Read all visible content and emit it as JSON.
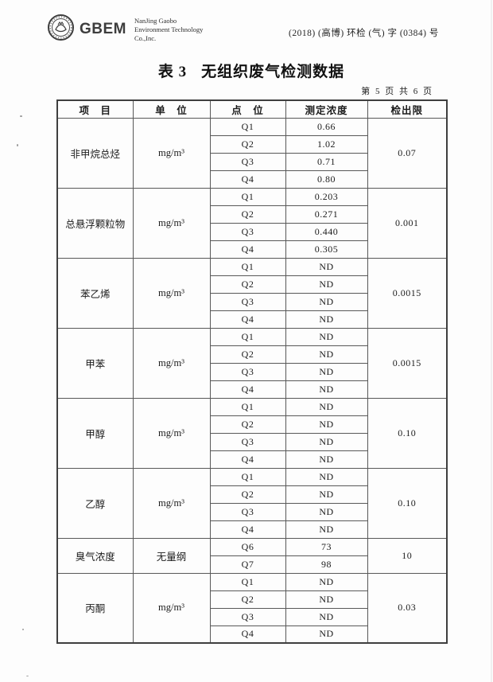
{
  "colors": {
    "paper": "#fdfdfd",
    "ink": "#1f1f1f",
    "border": "#585858",
    "logo_gray": "#3d3d3d"
  },
  "header": {
    "logo_icon": "gbem-seal-icon",
    "logo_text": "GBEM",
    "company_lines": [
      "NanJing Gaobo",
      "Environment Technology",
      "Co.,Inc."
    ],
    "doc_number": "(2018) (高博) 环检 (气) 字 (0384) 号"
  },
  "title": {
    "prefix": "表 3",
    "text": "无组织废气检测数据"
  },
  "page_info": "第 5 页 共 6 页",
  "table": {
    "columns": [
      "项　目",
      "单　位",
      "点　位",
      "测定浓度",
      "检出限"
    ],
    "groups": [
      {
        "item": "非甲烷总烃",
        "unit": "mg/m³",
        "points": [
          {
            "point": "Q1",
            "value": "0.66"
          },
          {
            "point": "Q2",
            "value": "1.02"
          },
          {
            "point": "Q3",
            "value": "0.71"
          },
          {
            "point": "Q4",
            "value": "0.80"
          }
        ],
        "detection_limit": "0.07"
      },
      {
        "item": "总悬浮颗粒物",
        "unit": "mg/m³",
        "points": [
          {
            "point": "Q1",
            "value": "0.203"
          },
          {
            "point": "Q2",
            "value": "0.271"
          },
          {
            "point": "Q3",
            "value": "0.440"
          },
          {
            "point": "Q4",
            "value": "0.305"
          }
        ],
        "detection_limit": "0.001"
      },
      {
        "item": "苯乙烯",
        "unit": "mg/m³",
        "points": [
          {
            "point": "Q1",
            "value": "ND"
          },
          {
            "point": "Q2",
            "value": "ND"
          },
          {
            "point": "Q3",
            "value": "ND"
          },
          {
            "point": "Q4",
            "value": "ND"
          }
        ],
        "detection_limit": "0.0015"
      },
      {
        "item": "甲苯",
        "unit": "mg/m³",
        "points": [
          {
            "point": "Q1",
            "value": "ND"
          },
          {
            "point": "Q2",
            "value": "ND"
          },
          {
            "point": "Q3",
            "value": "ND"
          },
          {
            "point": "Q4",
            "value": "ND"
          }
        ],
        "detection_limit": "0.0015"
      },
      {
        "item": "甲醇",
        "unit": "mg/m³",
        "points": [
          {
            "point": "Q1",
            "value": "ND"
          },
          {
            "point": "Q2",
            "value": "ND"
          },
          {
            "point": "Q3",
            "value": "ND"
          },
          {
            "point": "Q4",
            "value": "ND"
          }
        ],
        "detection_limit": "0.10"
      },
      {
        "item": "乙醇",
        "unit": "mg/m³",
        "points": [
          {
            "point": "Q1",
            "value": "ND"
          },
          {
            "point": "Q2",
            "value": "ND"
          },
          {
            "point": "Q3",
            "value": "ND"
          },
          {
            "point": "Q4",
            "value": "ND"
          }
        ],
        "detection_limit": "0.10"
      },
      {
        "item": "臭气浓度",
        "unit": "无量纲",
        "points": [
          {
            "point": "Q6",
            "value": "73"
          },
          {
            "point": "Q7",
            "value": "98"
          }
        ],
        "detection_limit": "10"
      },
      {
        "item": "丙酮",
        "unit": "mg/m³",
        "points": [
          {
            "point": "Q1",
            "value": "ND"
          },
          {
            "point": "Q2",
            "value": "ND"
          },
          {
            "point": "Q3",
            "value": "ND"
          },
          {
            "point": "Q4",
            "value": "ND"
          }
        ],
        "detection_limit": "0.03"
      }
    ]
  }
}
